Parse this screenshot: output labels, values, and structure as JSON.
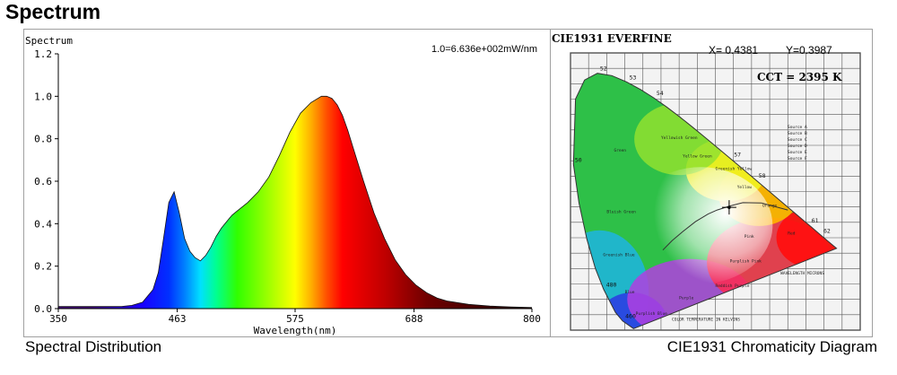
{
  "page": {
    "title": "Spectrum"
  },
  "spectrum_panel": {
    "caption": "Spectral Distribution"
  },
  "cie_panel": {
    "caption": "CIE1931 Chromaticity Diagram",
    "header": "CIE1931  EVERFINE",
    "x_readout": "X= 0.4381",
    "y_readout": "Y=0.3987",
    "cct_readout": "CCT = 2395 K"
  },
  "chart_data": [
    {
      "type": "area",
      "title": "Spectrum",
      "xlabel": "Wavelength(nm)",
      "ylabel": "Spectrum",
      "annotation": "1.0=6.636e+002mW/nm",
      "xlim": [
        350,
        800
      ],
      "ylim": [
        0,
        1.2
      ],
      "xticks": [
        350,
        463,
        575,
        688,
        800
      ],
      "xtick_labels": [
        "350",
        "463",
        "575",
        "688",
        "800"
      ],
      "yticks": [
        0.0,
        0.2,
        0.4,
        0.6,
        0.8,
        1.0,
        1.2
      ],
      "ytick_labels": [
        "0.0",
        "0.2",
        "0.4",
        "0.6",
        "0.8",
        "1.0",
        "1.2"
      ],
      "grid": false,
      "fill": "wavelength-colored gradient",
      "x": [
        350,
        380,
        410,
        420,
        430,
        440,
        445,
        450,
        455,
        460,
        465,
        470,
        475,
        480,
        485,
        490,
        495,
        500,
        505,
        510,
        515,
        520,
        525,
        530,
        540,
        550,
        560,
        570,
        580,
        590,
        600,
        605,
        610,
        615,
        620,
        625,
        630,
        640,
        650,
        660,
        670,
        680,
        690,
        700,
        710,
        720,
        740,
        760,
        780,
        800
      ],
      "y": [
        0.01,
        0.01,
        0.01,
        0.015,
        0.03,
        0.09,
        0.17,
        0.33,
        0.5,
        0.55,
        0.45,
        0.33,
        0.27,
        0.24,
        0.225,
        0.25,
        0.29,
        0.34,
        0.38,
        0.41,
        0.44,
        0.46,
        0.48,
        0.5,
        0.55,
        0.62,
        0.72,
        0.83,
        0.92,
        0.97,
        1.0,
        1.0,
        0.99,
        0.96,
        0.91,
        0.84,
        0.76,
        0.6,
        0.45,
        0.33,
        0.23,
        0.16,
        0.11,
        0.075,
        0.05,
        0.035,
        0.02,
        0.012,
        0.008,
        0.005
      ]
    },
    {
      "type": "scatter",
      "title": "CIE1931 Chromaticity Diagram",
      "xlim": [
        0,
        0.8
      ],
      "ylim": [
        0,
        0.9
      ],
      "grid": true,
      "series": [
        {
          "values": [
            {
              "x": 0.4381,
              "y": 0.3987
            }
          ]
        }
      ],
      "spectral_labels": [
        {
          "nm": "460",
          "x": 0.144,
          "y": 0.03
        },
        {
          "nm": "480",
          "x": 0.091,
          "y": 0.133
        },
        {
          "nm": "50",
          "x": 0.0045,
          "y": 0.538
        },
        {
          "nm": "52",
          "x": 0.074,
          "y": 0.834
        },
        {
          "nm": "53",
          "x": 0.155,
          "y": 0.806
        },
        {
          "nm": "54",
          "x": 0.23,
          "y": 0.754
        },
        {
          "nm": "57",
          "x": 0.444,
          "y": 0.555
        },
        {
          "nm": "58",
          "x": 0.512,
          "y": 0.487
        },
        {
          "nm": "61",
          "x": 0.658,
          "y": 0.341
        },
        {
          "nm": "62",
          "x": 0.691,
          "y": 0.308
        }
      ],
      "region_labels": [
        "Green",
        "Yellowish Green",
        "Yellow Green",
        "Greenish Yellow",
        "Yellow",
        "Orange",
        "Bluish Green",
        "Greenish Blue",
        "Blue",
        "Purplish Blue",
        "Purple",
        "Reddish Purple",
        "Purplish Pink",
        "Pink",
        "Red",
        "WAVELENGTH MICRONS",
        "COLOR TEMPERATURE IN KELVINS"
      ],
      "sources": [
        "Source A",
        "Source B",
        "Source C",
        "Source D",
        "Source E",
        "Source F"
      ]
    }
  ]
}
